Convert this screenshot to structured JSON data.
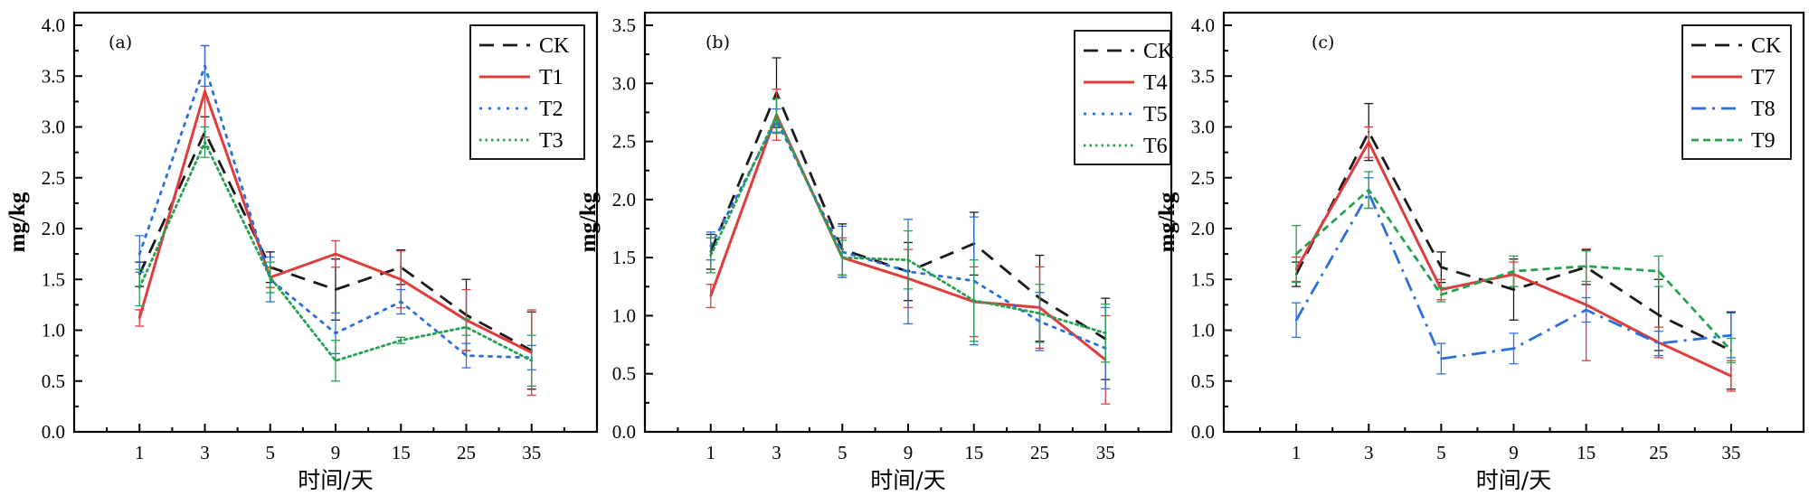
{
  "chart_data": [
    {
      "type": "line",
      "panel_label": "(a)",
      "ylabel": "mg/kg",
      "xlabel": "时间/天",
      "categories": [
        "1",
        "3",
        "5",
        "9",
        "15",
        "25",
        "35"
      ],
      "ylim": [
        0,
        4.0
      ],
      "yticks": [
        "0.0",
        "0.5",
        "1.0",
        "1.5",
        "2.0",
        "2.5",
        "3.0",
        "3.5",
        "4.0"
      ],
      "legend_position": "top-right",
      "series": [
        {
          "name": "CK",
          "color": "#1a1a1a",
          "style": "dash",
          "values": [
            1.55,
            2.95,
            1.62,
            1.4,
            1.62,
            1.15,
            0.8
          ],
          "errors": [
            0.12,
            0.15,
            0.15,
            0.3,
            0.17,
            0.35,
            0.38
          ]
        },
        {
          "name": "T1",
          "color": "#e03c3c",
          "style": "solid",
          "values": [
            1.12,
            3.35,
            1.52,
            1.75,
            1.5,
            1.1,
            0.78
          ],
          "errors": [
            0.08,
            0.45,
            0.1,
            0.13,
            0.28,
            0.3,
            0.42
          ]
        },
        {
          "name": "T2",
          "color": "#2a6fdb",
          "style": "dot",
          "values": [
            1.75,
            3.6,
            1.5,
            0.97,
            1.28,
            0.75,
            0.73
          ],
          "errors": [
            0.18,
            0.2,
            0.22,
            0.2,
            0.12,
            0.12,
            0.12
          ]
        },
        {
          "name": "T3",
          "color": "#28a050",
          "style": "densedot",
          "values": [
            1.42,
            2.85,
            1.52,
            0.7,
            0.9,
            1.03,
            0.7
          ],
          "errors": [
            0.18,
            0.15,
            0.15,
            0.2,
            0.03,
            0.08,
            0.25
          ]
        }
      ]
    },
    {
      "type": "line",
      "panel_label": "(b)",
      "ylabel": "mg/kg",
      "xlabel": "时间/天",
      "categories": [
        "1",
        "3",
        "5",
        "9",
        "15",
        "25",
        "35"
      ],
      "ylim": [
        0,
        3.5
      ],
      "yticks": [
        "0.0",
        "0.5",
        "1.0",
        "1.5",
        "2.0",
        "2.5",
        "3.0",
        "3.5"
      ],
      "legend_position": "top-right",
      "series": [
        {
          "name": "CK",
          "color": "#1a1a1a",
          "style": "dash",
          "values": [
            1.55,
            2.92,
            1.57,
            1.38,
            1.62,
            1.15,
            0.8
          ],
          "errors": [
            0.15,
            0.3,
            0.22,
            0.25,
            0.27,
            0.37,
            0.35
          ]
        },
        {
          "name": "T4",
          "color": "#e03c3c",
          "style": "solid",
          "values": [
            1.17,
            2.73,
            1.5,
            1.32,
            1.12,
            1.07,
            0.62
          ],
          "errors": [
            0.1,
            0.22,
            0.17,
            0.25,
            0.3,
            0.35,
            0.38
          ]
        },
        {
          "name": "T5",
          "color": "#2a6fdb",
          "style": "dot",
          "values": [
            1.6,
            2.68,
            1.55,
            1.38,
            1.3,
            0.95,
            0.72
          ],
          "errors": [
            0.12,
            0.1,
            0.22,
            0.45,
            0.55,
            0.25,
            0.35
          ]
        },
        {
          "name": "T6",
          "color": "#28a050",
          "style": "densedot",
          "values": [
            1.52,
            2.72,
            1.5,
            1.48,
            1.13,
            1.02,
            0.85
          ],
          "errors": [
            0.15,
            0.15,
            0.15,
            0.25,
            0.35,
            0.25,
            0.25
          ]
        }
      ]
    },
    {
      "type": "line",
      "panel_label": "(c)",
      "ylabel": "mg/kg",
      "xlabel": "时间/天",
      "categories": [
        "1",
        "3",
        "5",
        "9",
        "15",
        "25",
        "35"
      ],
      "ylim": [
        0,
        4.0
      ],
      "yticks": [
        "0.0",
        "0.5",
        "1.0",
        "1.5",
        "2.0",
        "2.5",
        "3.0",
        "3.5",
        "4.0"
      ],
      "legend_position": "top-right",
      "series": [
        {
          "name": "CK",
          "color": "#1a1a1a",
          "style": "dash",
          "values": [
            1.55,
            2.95,
            1.62,
            1.4,
            1.62,
            1.15,
            0.8
          ],
          "errors": [
            0.12,
            0.28,
            0.15,
            0.3,
            0.17,
            0.35,
            0.38
          ]
        },
        {
          "name": "T7",
          "color": "#e03c3c",
          "style": "solid",
          "values": [
            1.6,
            2.85,
            1.4,
            1.55,
            1.25,
            0.88,
            0.55
          ],
          "errors": [
            0.12,
            0.15,
            0.1,
            0.12,
            0.55,
            0.15,
            0.15
          ]
        },
        {
          "name": "T8",
          "color": "#2a6fdb",
          "style": "dashdot",
          "values": [
            1.1,
            2.35,
            0.72,
            0.82,
            1.2,
            0.87,
            0.95
          ],
          "errors": [
            0.17,
            0.15,
            0.15,
            0.15,
            0.12,
            0.12,
            0.22
          ]
        },
        {
          "name": "T9",
          "color": "#28a050",
          "style": "shortdash",
          "values": [
            1.75,
            2.38,
            1.35,
            1.58,
            1.63,
            1.58,
            0.8
          ],
          "errors": [
            0.28,
            0.18,
            0.07,
            0.15,
            0.15,
            0.15,
            0.12
          ]
        }
      ]
    }
  ]
}
